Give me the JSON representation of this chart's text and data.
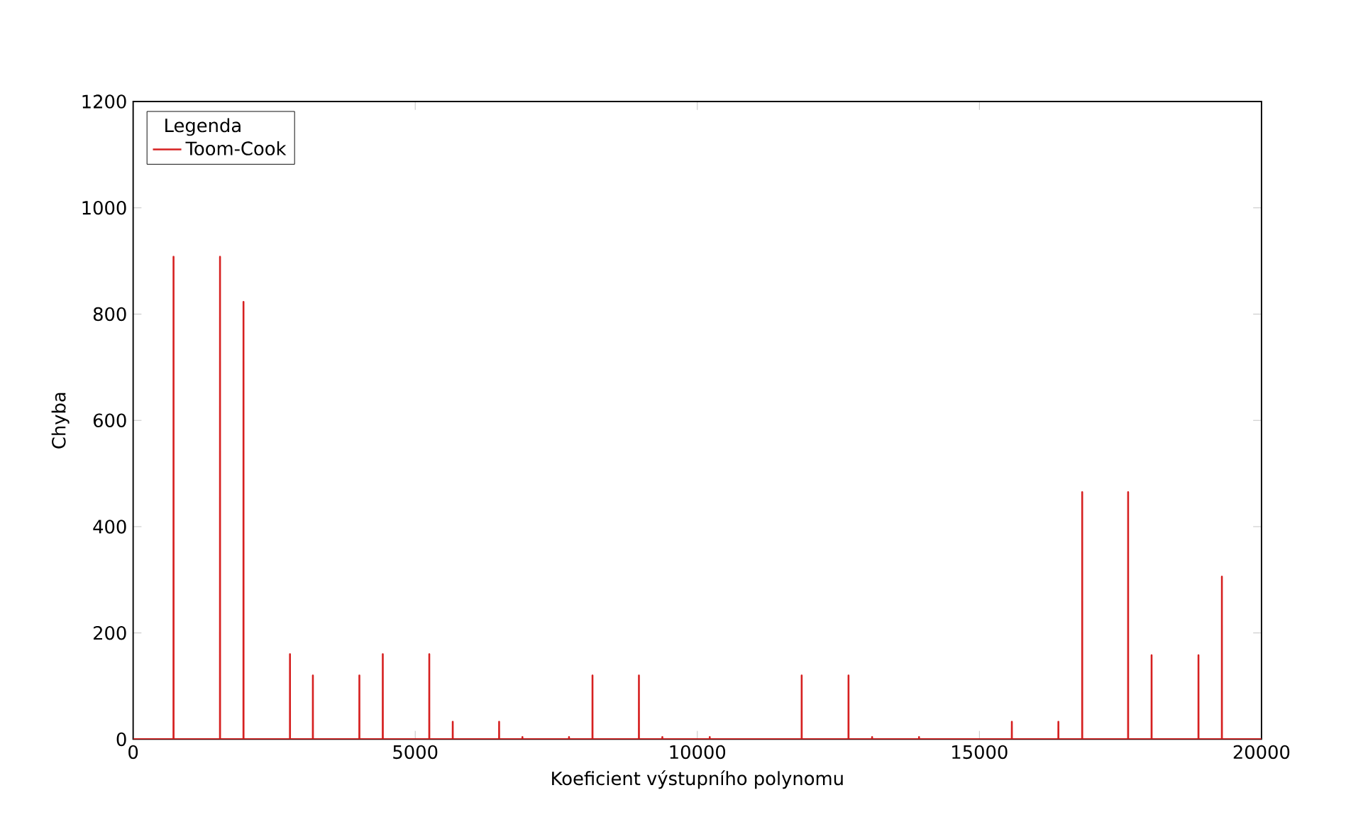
{
  "chart_data": {
    "type": "line",
    "xlabel": "Koeficient výstupního polynomu",
    "ylabel": "Chyba",
    "legend_title": "Legenda",
    "xlim": [
      0,
      20000
    ],
    "ylim": [
      0,
      1200
    ],
    "xticks": [
      0,
      5000,
      10000,
      15000,
      20000
    ],
    "yticks": [
      0,
      200,
      400,
      600,
      800,
      1000,
      1200
    ],
    "legend": "top left",
    "grid": false,
    "marker": "none",
    "line_style": "solid",
    "series": [
      {
        "name": "Toom-Cook",
        "color": "#d62020",
        "x": [
          0,
          715,
          716,
          717,
          1539,
          1540,
          1541,
          1955,
          1956,
          1957,
          2779,
          2780,
          2781,
          3185,
          3186,
          3187,
          4009,
          4010,
          4011,
          4424,
          4425,
          4426,
          5248,
          5249,
          5250,
          5664,
          5665,
          5666,
          6486,
          6487,
          6488,
          6899,
          6900,
          6901,
          7725,
          7726,
          7727,
          8141,
          8142,
          8143,
          8964,
          8965,
          8966,
          9379,
          9380,
          9381,
          10219,
          10220,
          10221,
          11849,
          11850,
          11851,
          12679,
          12680,
          12681,
          13097,
          13098,
          13099,
          13929,
          13930,
          13931,
          15574,
          15575,
          15576,
          16399,
          16400,
          16401,
          16821,
          16822,
          16823,
          17635,
          17636,
          17637,
          18051,
          18052,
          18053,
          18882,
          18883,
          18884,
          19297,
          19298,
          19299,
          20000
        ],
        "values": [
          0,
          0,
          908,
          0,
          0,
          908,
          0,
          0,
          823,
          0,
          0,
          160,
          0,
          0,
          120,
          0,
          0,
          120,
          0,
          0,
          160,
          0,
          0,
          160,
          0,
          0,
          33,
          0,
          0,
          33,
          0,
          0,
          4,
          0,
          0,
          4,
          0,
          0,
          120,
          0,
          0,
          120,
          0,
          0,
          4,
          0,
          0,
          4,
          0,
          0,
          120,
          0,
          0,
          120,
          0,
          0,
          4,
          0,
          0,
          4,
          0,
          0,
          33,
          0,
          0,
          33,
          0,
          0,
          465,
          0,
          0,
          465,
          0,
          0,
          158,
          0,
          0,
          158,
          0,
          0,
          306,
          0,
          0
        ]
      }
    ]
  }
}
